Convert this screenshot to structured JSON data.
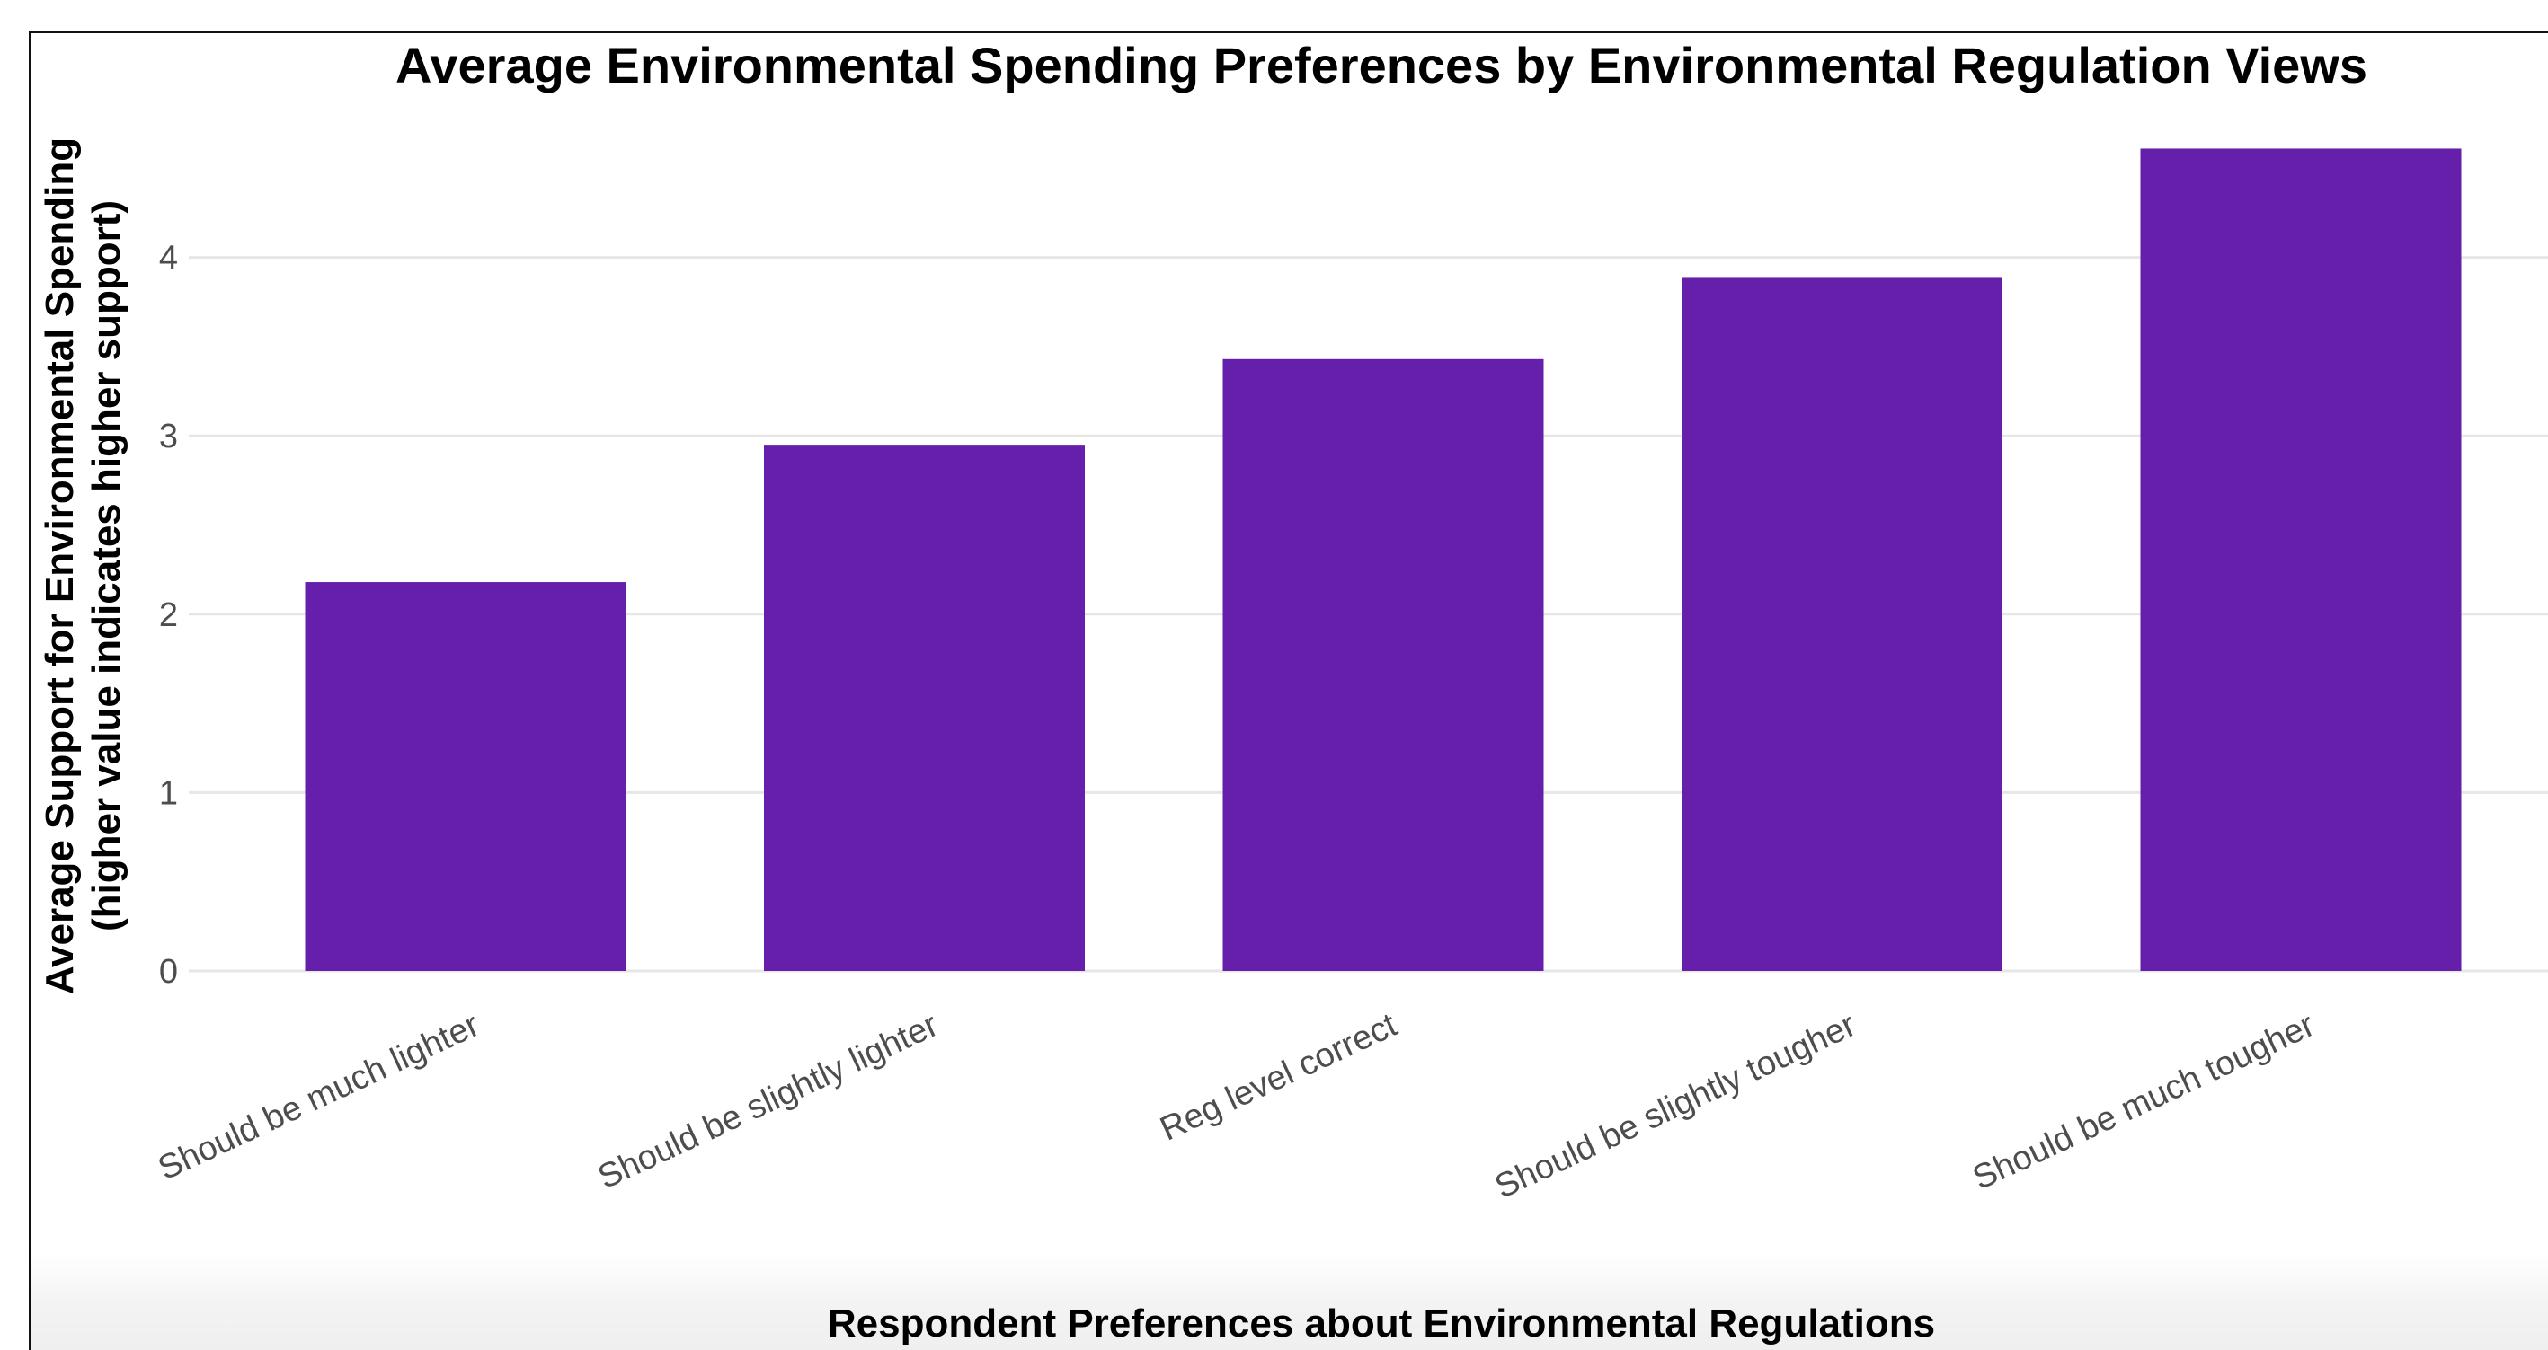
{
  "chart_data": {
    "type": "bar",
    "title": "Average Environmental Spending Preferences by Environmental Regulation Views",
    "xlabel": "Respondent Preferences about Environmental Regulations",
    "ylabel_line1": "Average Support for Environmental Spending",
    "ylabel_line2": "(higher value indicates higher support)",
    "categories": [
      "Should be much lighter",
      "Should be slightly lighter",
      "Reg level correct",
      "Should be slightly tougher",
      "Should be much tougher"
    ],
    "values": [
      2.18,
      2.95,
      3.43,
      3.89,
      4.61
    ],
    "ylim": [
      0,
      4.8
    ],
    "yticks": [
      "0",
      "1",
      "2",
      "3",
      "4"
    ],
    "bar_color": "#661faa",
    "grid": true
  }
}
